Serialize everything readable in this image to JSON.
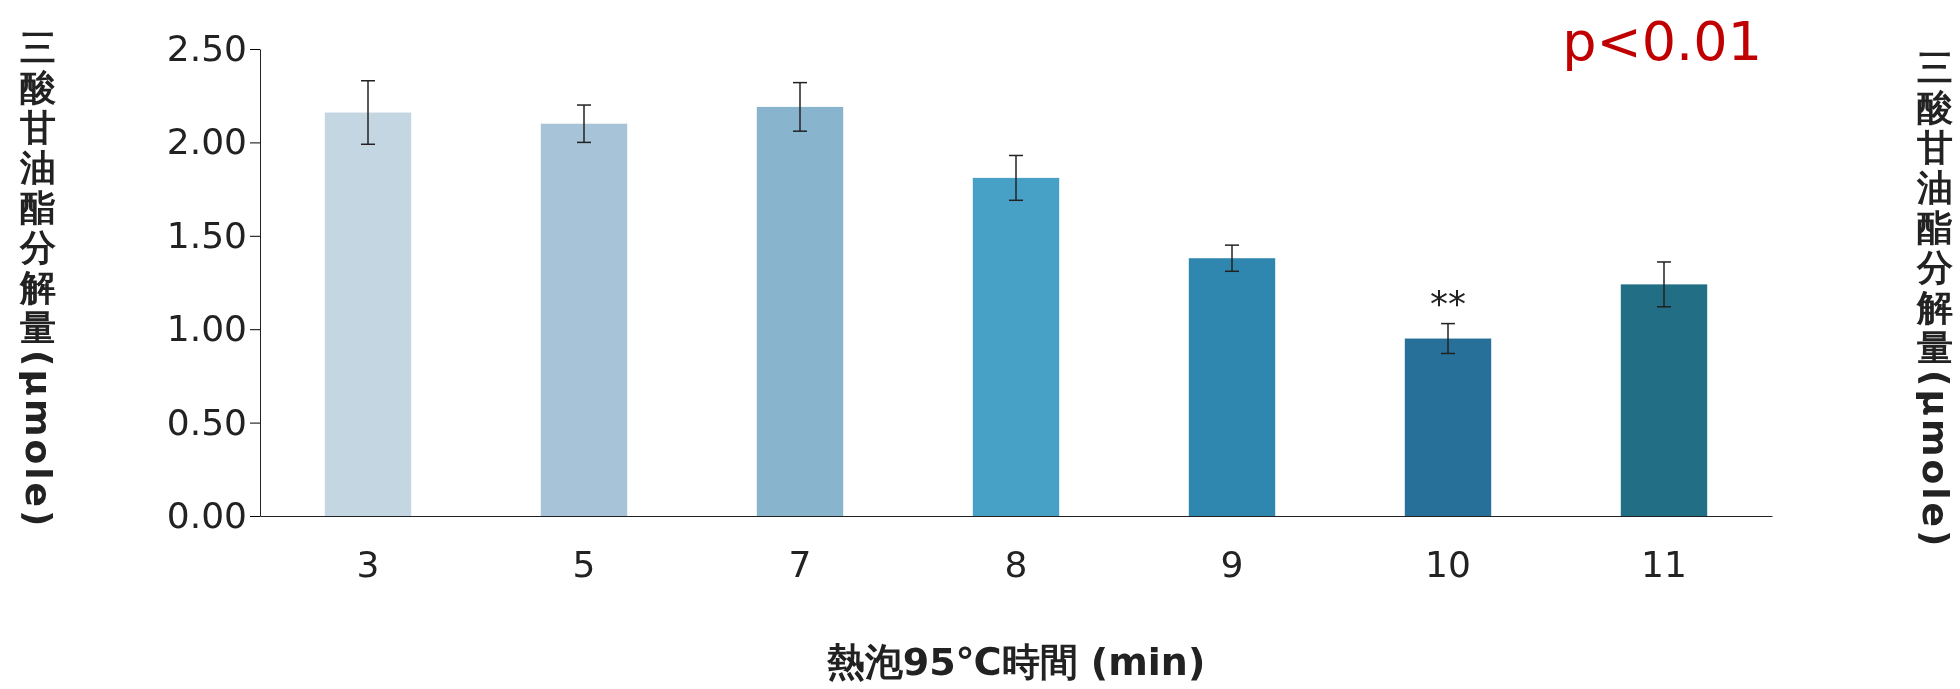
{
  "chart_data": {
    "type": "bar",
    "xlabel": "熱泡95℃時間 (min)",
    "ylabel": "三酸甘油酯分解量(μmole)",
    "categories": [
      "3",
      "5",
      "7",
      "8",
      "9",
      "10",
      "11"
    ],
    "values": [
      2.16,
      2.1,
      2.19,
      1.81,
      1.38,
      0.95,
      1.24
    ],
    "errors": [
      0.17,
      0.1,
      0.13,
      0.12,
      0.07,
      0.08,
      0.12
    ],
    "colors": [
      "#c3d6e2",
      "#a6c3d7",
      "#88b5cd",
      "#47a0c6",
      "#2f87b0",
      "#27709a",
      "#226e85"
    ],
    "ylim": [
      0,
      2.5
    ],
    "yticks": [
      {
        "value": 0,
        "label": "0.00"
      },
      {
        "value": 0.5,
        "label": "0.50"
      },
      {
        "value": 1,
        "label": "1.00"
      },
      {
        "value": 1.5,
        "label": "1.50"
      },
      {
        "value": 2,
        "label": "2.00"
      },
      {
        "value": 2.5,
        "label": "2.50"
      }
    ],
    "annotations": [
      {
        "text": "**",
        "x": "10",
        "y": 1.03
      },
      "p<0.01",
      "三酸甘油酯分解量(μmole)"
    ]
  }
}
